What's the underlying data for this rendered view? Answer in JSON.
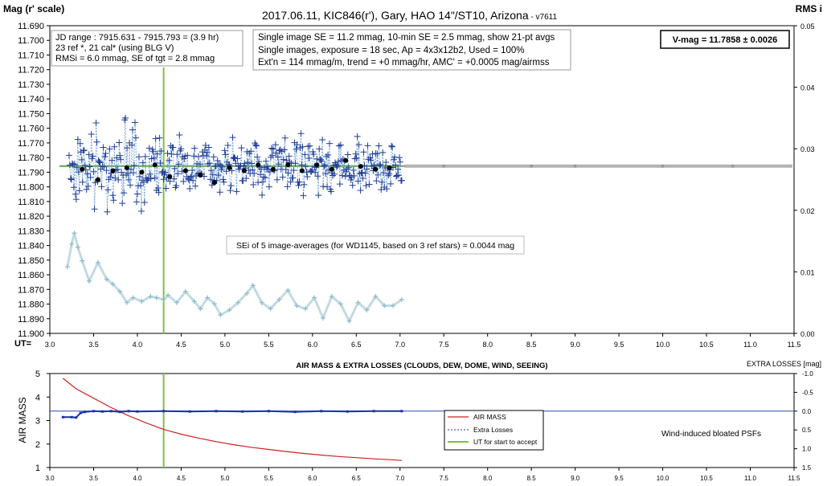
{
  "top": {
    "title_main": "2017.06.11,  KIC846(r'),  Gary,  HAO 14\"/ST10,  Arizona",
    "title_version": " - v7611",
    "ylabel_left": "Mag (r' scale)",
    "ylabel_right": "RMS i",
    "xlabel": "UT=",
    "box1": [
      "JD range : 7915.631 - 7915.793 = (3.9 hr)",
      "23 ref *, 21 cal* (using BLG V)",
      "RMSi = 6.0 mmag, SE of tgt = 2.8 mmag"
    ],
    "box2": [
      "Single image SE = 11.2 mmag, 10-min SE = 2.5 mmag, show 21-pt avgs",
      "Single images, exposure = 18 sec, Ap = 4x3x12b2, Used = 100%",
      "Ext'n = 114 mmag/m, trend = +0 mmag/hr, AMC' = +0.0005 mag/airmss"
    ],
    "vmag": "V-mag = 11.7858 ± 0.0026",
    "sei": "SEi of 5 image-averages (for WD1145, based on 3 ref stars) = 0.0044 mag"
  },
  "bottom": {
    "title": "AIR MASS & EXTRA LOSSES (CLOUDS, DEW, DOME, WIND, SEEING)",
    "ylabel_left": "AIR MASS",
    "ylabel_right": "EXTRA LOSSES [mag]",
    "legend": [
      "AIR MASS",
      "Extra Losses",
      "UT for start to accept"
    ],
    "note": "Wind-induced bloated PSFs"
  },
  "colors": {
    "mag": "#1f3d99",
    "rms": "#8fbccb",
    "avg": "#000000",
    "airmass": "#cc2222",
    "extra": "#1a2fb0",
    "ut_line": "#7cc242",
    "ref_line": "#5aaa44",
    "gray_line": "#b3b3b3"
  },
  "chart_data": [
    {
      "type": "scatter",
      "title": "2017.06.11,  KIC846(r'),  Gary,  HAO 14\"/ST10,  Arizona - v7611",
      "xlabel": "UT=",
      "ylabel": "Mag (r' scale)",
      "y2label": "RMS i",
      "xlim": [
        3.0,
        11.5
      ],
      "ylim": [
        11.69,
        11.9
      ],
      "y_inverted": true,
      "y2lim": [
        0.0,
        0.05
      ],
      "x_ticks": [
        "3.0",
        "3.5",
        "4.0",
        "4.5",
        "5.0",
        "5.5",
        "6.0",
        "6.5",
        "7.0",
        "7.5",
        "8.0",
        "8.5",
        "9.0",
        "9.5",
        "10.0",
        "10.5",
        "11.0",
        "11.5"
      ],
      "y_ticks": [
        "11.690",
        "11.700",
        "11.710",
        "11.720",
        "11.730",
        "11.740",
        "11.750",
        "11.760",
        "11.770",
        "11.780",
        "11.790",
        "11.800",
        "11.810",
        "11.820",
        "11.830",
        "11.840",
        "11.850",
        "11.860",
        "11.870",
        "11.880",
        "11.890",
        "11.900"
      ],
      "y2_ticks": [
        "0.00",
        "0.01",
        "0.02",
        "0.03",
        "0.04",
        "0.05"
      ],
      "series": [
        {
          "kind": "averages",
          "x": [
            3.37,
            3.55,
            3.72,
            3.88,
            4.05,
            4.2,
            4.37,
            4.55,
            4.72,
            4.88,
            5.05,
            5.22,
            5.38,
            5.55,
            5.72,
            5.88,
            6.05,
            6.22,
            6.38,
            6.55,
            6.72,
            6.88
          ],
          "y": [
            11.788,
            11.795,
            11.789,
            11.787,
            11.79,
            11.785,
            11.793,
            11.789,
            11.792,
            11.797,
            11.787,
            11.789,
            11.785,
            11.788,
            11.785,
            11.789,
            11.785,
            11.788,
            11.782,
            11.786,
            11.788,
            11.787
          ]
        },
        {
          "kind": "rms",
          "x": [
            3.2,
            3.25,
            3.28,
            3.32,
            3.37,
            3.45,
            3.55,
            3.65,
            3.72,
            3.8,
            3.88,
            3.95,
            4.05,
            4.15,
            4.22,
            4.3,
            4.35,
            4.45,
            4.55,
            4.65,
            4.72,
            4.8,
            4.88,
            4.95,
            5.05,
            5.15,
            5.25,
            5.32,
            5.42,
            5.52,
            5.62,
            5.72,
            5.82,
            5.92,
            6.02,
            6.12,
            6.22,
            6.32,
            6.42,
            6.52,
            6.62,
            6.72,
            6.82,
            6.92,
            7.02
          ],
          "y": [
            0.0108,
            0.0145,
            0.0163,
            0.014,
            0.0118,
            0.0085,
            0.0115,
            0.0088,
            0.008,
            0.0068,
            0.005,
            0.0058,
            0.0052,
            0.006,
            0.0058,
            0.0055,
            0.0062,
            0.005,
            0.0068,
            0.0052,
            0.004,
            0.0058,
            0.0048,
            0.003,
            0.0038,
            0.005,
            0.0065,
            0.0078,
            0.005,
            0.004,
            0.0055,
            0.007,
            0.0045,
            0.004,
            0.0058,
            0.0025,
            0.006,
            0.0048,
            0.002,
            0.005,
            0.0038,
            0.006,
            0.0045,
            0.0045,
            0.0055
          ]
        }
      ],
      "reference_lines": [
        {
          "kind": "vmag",
          "y": 11.7858,
          "x": [
            3.0,
            11.5
          ]
        },
        {
          "kind": "ut_start",
          "x": 4.3
        }
      ]
    },
    {
      "type": "line",
      "title": "AIR MASS & EXTRA LOSSES (CLOUDS, DEW, DOME, WIND, SEEING)",
      "xlabel": "",
      "ylabel": "AIR MASS",
      "y2label": "EXTRA LOSSES [mag]",
      "xlim": [
        3.0,
        11.5
      ],
      "ylim": [
        1,
        5
      ],
      "y2lim": [
        -1.0,
        1.5
      ],
      "y2_inverted": true,
      "x_ticks": [
        "3.0",
        "3.5",
        "4.0",
        "4.5",
        "5.0",
        "5.5",
        "6.0",
        "6.5",
        "7.0",
        "7.5",
        "8.0",
        "8.5",
        "9.0",
        "9.5",
        "10.0",
        "10.5",
        "11.0",
        "11.5"
      ],
      "y_ticks": [
        "1",
        "2",
        "3",
        "4",
        "5"
      ],
      "y2_ticks": [
        "-1.0",
        "-0.5",
        "0.0",
        "0.5",
        "1.0",
        "1.5"
      ],
      "series": [
        {
          "name": "AIR MASS",
          "x": [
            3.15,
            3.3,
            3.5,
            3.7,
            3.9,
            4.1,
            4.3,
            4.5,
            4.7,
            4.9,
            5.1,
            5.3,
            5.5,
            5.7,
            5.9,
            6.1,
            6.3,
            6.5,
            6.7,
            6.9,
            7.02
          ],
          "y": [
            4.8,
            4.35,
            3.95,
            3.55,
            3.2,
            2.9,
            2.62,
            2.42,
            2.25,
            2.1,
            1.97,
            1.86,
            1.77,
            1.68,
            1.6,
            1.53,
            1.47,
            1.42,
            1.37,
            1.33,
            1.3
          ]
        },
        {
          "name": "Extra Losses",
          "x": [
            3.15,
            3.25,
            3.3,
            3.35,
            3.4,
            3.5,
            3.6,
            3.7,
            3.8,
            3.9,
            4.0,
            4.3,
            4.6,
            4.9,
            5.2,
            5.5,
            5.8,
            6.1,
            6.4,
            6.7,
            7.02
          ],
          "y": [
            0.16,
            0.16,
            0.17,
            0.05,
            0.02,
            0.0,
            0.01,
            0.0,
            0.02,
            0.0,
            0.01,
            0.0,
            0.01,
            0.0,
            0.01,
            0.0,
            0.02,
            0.0,
            0.01,
            0.0,
            0.0
          ]
        }
      ],
      "reference_lines": [
        {
          "kind": "ut_start",
          "x": 4.3
        },
        {
          "kind": "zero_loss",
          "y": 0.0
        }
      ]
    }
  ]
}
